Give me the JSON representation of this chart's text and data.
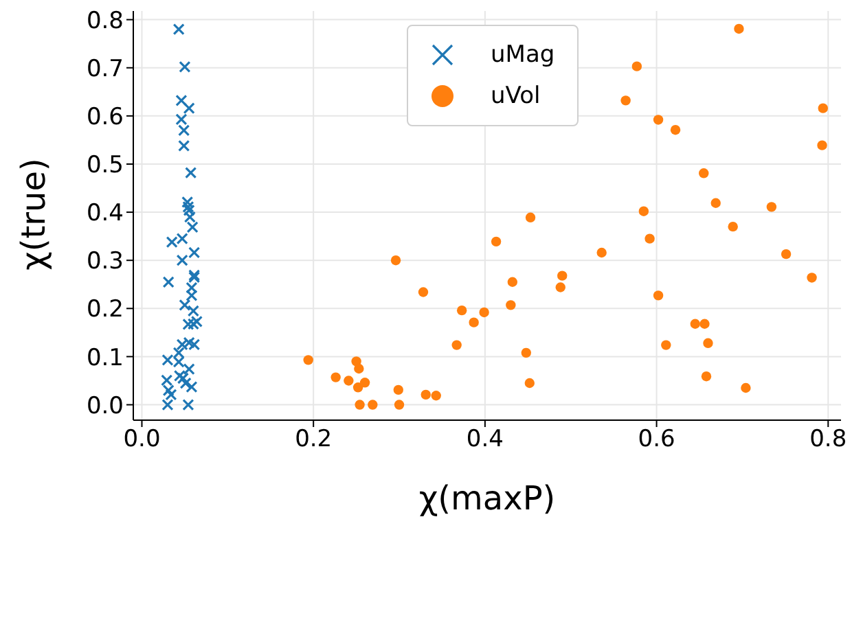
{
  "chart_data": {
    "type": "scatter",
    "xlabel": "χ(maxP)",
    "ylabel": "χ(true)",
    "xlim": [
      -0.01,
      0.815
    ],
    "ylim": [
      -0.032,
      0.818
    ],
    "xticks": [
      {
        "value": 0,
        "label": "0.0"
      },
      {
        "value": 0.2,
        "label": "0.2"
      },
      {
        "value": 0.4,
        "label": "0.4"
      },
      {
        "value": 0.6,
        "label": "0.6"
      },
      {
        "value": 0.8,
        "label": "0.8"
      }
    ],
    "yticks": [
      {
        "value": 0,
        "label": "0.0"
      },
      {
        "value": 0.1,
        "label": "0.1"
      },
      {
        "value": 0.2,
        "label": "0.2"
      },
      {
        "value": 0.3,
        "label": "0.3"
      },
      {
        "value": 0.4,
        "label": "0.4"
      },
      {
        "value": 0.5,
        "label": "0.5"
      },
      {
        "value": 0.6,
        "label": "0.6"
      },
      {
        "value": 0.7,
        "label": "0.7"
      },
      {
        "value": 0.8,
        "label": "0.8"
      }
    ],
    "grid": true,
    "legend": "top",
    "series": [
      {
        "name": "uMag",
        "color": "#1f77b4",
        "marker": "cross",
        "x": [
          0.043,
          0.05,
          0.046,
          0.055,
          0.046,
          0.049,
          0.049,
          0.057,
          0.053,
          0.054,
          0.055,
          0.056,
          0.059,
          0.035,
          0.047,
          0.061,
          0.047,
          0.061,
          0.061,
          0.031,
          0.058,
          0.058,
          0.05,
          0.06,
          0.059,
          0.054,
          0.064,
          0.06,
          0.047,
          0.055,
          0.061,
          0.043,
          0.03,
          0.043,
          0.055,
          0.044,
          0.048,
          0.051,
          0.058,
          0.054,
          0.029,
          0.031,
          0.034,
          0.03,
          0.054
        ],
        "values": [
          0.78,
          0.702,
          0.632,
          0.616,
          0.593,
          0.57,
          0.538,
          0.482,
          0.421,
          0.411,
          0.404,
          0.39,
          0.369,
          0.338,
          0.345,
          0.316,
          0.3,
          0.265,
          0.269,
          0.255,
          0.243,
          0.227,
          0.207,
          0.195,
          null,
          0.167,
          0.173,
          0.168,
          0.125,
          0.129,
          0.125,
          0.108,
          0.093,
          0.089,
          0.074,
          0.06,
          0.055,
          0.045,
          0.037,
          null,
          0.051,
          0.03,
          0.021,
          0,
          0
        ]
      },
      {
        "name": "uVol",
        "color": "#ff7f0e",
        "marker": "circle",
        "x": [
          0.194,
          0.226,
          0.241,
          0.25,
          0.253,
          0.252,
          0.26,
          0.254,
          0.269,
          0.296,
          0.299,
          0.3,
          0.328,
          0.331,
          0.343,
          0.367,
          0.373,
          0.387,
          0.399,
          0.413,
          0.43,
          0.432,
          0.448,
          0.452,
          0.453,
          0.488,
          0.49,
          0.536,
          0.564,
          0.577,
          0.585,
          0.592,
          0.602,
          0.602,
          0.611,
          0.622,
          0.645,
          0.656,
          0.655,
          0.66,
          0.658,
          0.669,
          0.689,
          0.696,
          0.704,
          0.734,
          0.751,
          0.781,
          0.793,
          0.794
        ],
        "values": [
          0.093,
          0.057,
          0.05,
          0.09,
          0.075,
          0.036,
          0.046,
          0,
          0,
          0.3,
          0.031,
          0,
          0.234,
          0.021,
          0.019,
          0.124,
          0.196,
          0.171,
          0.192,
          0.339,
          0.207,
          0.255,
          0.108,
          0.045,
          0.389,
          0.244,
          0.268,
          0.316,
          0.632,
          0.703,
          0.402,
          0.345,
          0.592,
          0.227,
          0.124,
          0.571,
          0.168,
          0.168,
          0.481,
          0.128,
          0.059,
          0.419,
          0.37,
          0.781,
          0.035,
          0.411,
          0.313,
          0.264,
          0.539,
          0.616
        ]
      }
    ]
  }
}
